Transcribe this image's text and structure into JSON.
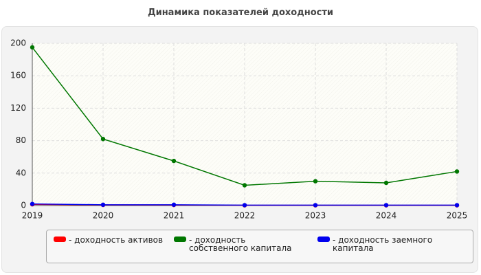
{
  "chart_data": {
    "type": "line",
    "title": "Динамика показателей доходности",
    "x": [
      2019,
      2020,
      2021,
      2022,
      2023,
      2024,
      2025
    ],
    "xlim": [
      2019,
      2025
    ],
    "xticks": [
      2019,
      2020,
      2021,
      2022,
      2023,
      2024,
      2025
    ],
    "ylim": [
      0,
      200
    ],
    "yticks": [
      0,
      40,
      80,
      120,
      160,
      200
    ],
    "grid": true,
    "series": [
      {
        "name": "- доходность активов",
        "color": "#ff0000",
        "values": [
          1.5,
          0.8,
          0.7,
          0.3,
          0.3,
          0.3,
          0.3
        ]
      },
      {
        "name": "- доходность собственного капитала",
        "color": "#007700",
        "values": [
          195,
          82,
          55,
          25,
          30,
          28,
          42
        ]
      },
      {
        "name": "- доходность заемного капитала",
        "color": "#0000ee",
        "values": [
          2,
          1,
          1,
          0.5,
          0.5,
          0.5,
          0.5
        ]
      }
    ]
  }
}
